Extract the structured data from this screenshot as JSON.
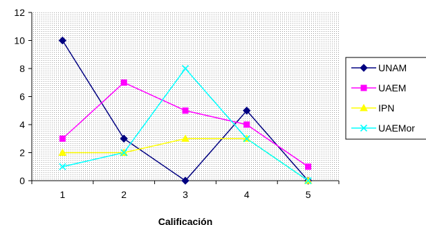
{
  "chart_data": {
    "type": "line",
    "title": "",
    "xlabel": "Calificación",
    "ylabel": "",
    "categories": [
      "1",
      "2",
      "3",
      "4",
      "5"
    ],
    "ylim": [
      0,
      12
    ],
    "yticks": [
      0,
      2,
      4,
      6,
      8,
      10,
      12
    ],
    "grid": false,
    "plot_background": "dotted gray",
    "legend_position": "right",
    "series": [
      {
        "name": "UNAM",
        "values": [
          10,
          3,
          0,
          5,
          0
        ],
        "color": "#000080",
        "marker": "diamond"
      },
      {
        "name": "UAEM",
        "values": [
          3,
          7,
          5,
          4,
          1
        ],
        "color": "#FF00FF",
        "marker": "square"
      },
      {
        "name": "IPN",
        "values": [
          2,
          2,
          3,
          3,
          0
        ],
        "color": "#FFFF00",
        "marker": "triangle"
      },
      {
        "name": "UAEMor",
        "values": [
          1,
          2,
          8,
          3,
          0
        ],
        "color": "#00FFFF",
        "marker": "x"
      }
    ]
  }
}
